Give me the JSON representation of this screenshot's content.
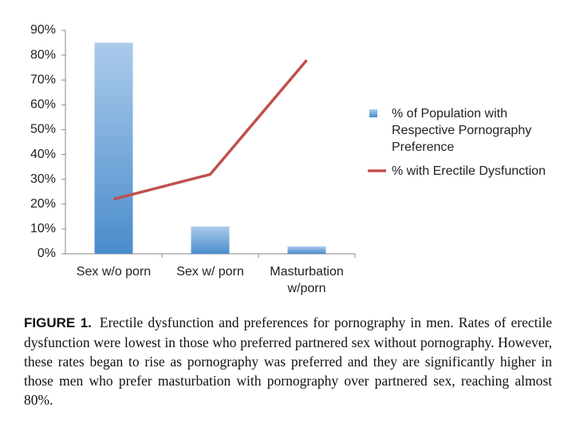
{
  "chart_data": {
    "type": "bar",
    "categories": [
      "Sex w/o porn",
      "Sex w/ porn",
      "Masturbation w/porn"
    ],
    "series": [
      {
        "name": "% of Population with Respective Pornography Preference",
        "type": "bar",
        "color": "#5b9bd5",
        "values": [
          85,
          11,
          3
        ]
      },
      {
        "name": "% with Erectile Dysfunction",
        "type": "line",
        "color": "#c0504d",
        "values": [
          22,
          32,
          78
        ]
      }
    ],
    "ylim": [
      0,
      90
    ],
    "yticks": [
      {
        "value": 0,
        "label": "0%"
      },
      {
        "value": 10,
        "label": "10%"
      },
      {
        "value": 20,
        "label": "20%"
      },
      {
        "value": 30,
        "label": "30%"
      },
      {
        "value": 40,
        "label": "40%"
      },
      {
        "value": 50,
        "label": "50%"
      },
      {
        "value": 60,
        "label": "60%"
      },
      {
        "value": 70,
        "label": "70%"
      },
      {
        "value": 80,
        "label": "80%"
      },
      {
        "value": 90,
        "label": "90%"
      }
    ],
    "grid": false,
    "legend": "right",
    "caption_label": "FIGURE 1.",
    "caption": "Erectile dysfunction and preferences for pornography in men. Rates of erectile dysfunction were lowest in those who preferred partnered sex without pornography. However, these rates began to rise as pornography was preferred and they are significantly higher in those men who prefer masturbation with pornography over partnered sex, reaching almost 80%."
  }
}
